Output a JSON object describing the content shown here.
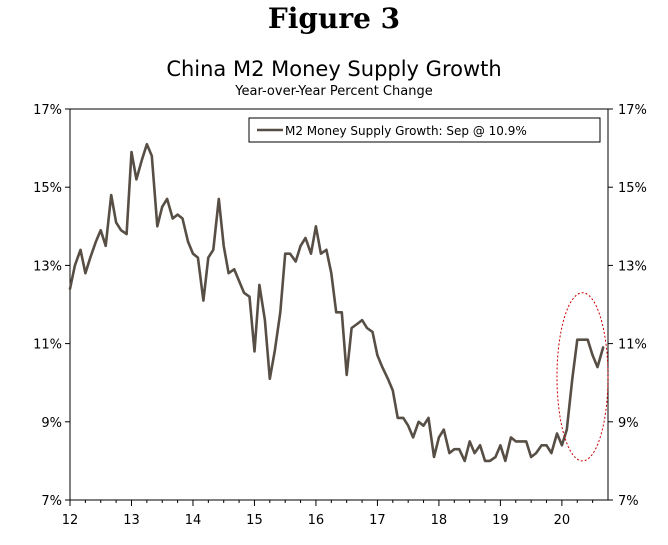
{
  "figure_label": "Figure 3",
  "chart_data": {
    "type": "line",
    "title": "China M2 Money Supply Growth",
    "subtitle": "Year-over-Year Percent Change",
    "xlabel": "",
    "ylabel": "",
    "x_ticks": [
      "12",
      "13",
      "14",
      "15",
      "16",
      "17",
      "18",
      "19",
      "20"
    ],
    "xlim": [
      2012,
      2020.75
    ],
    "ylim": [
      7,
      17
    ],
    "y_ticks": [
      7,
      9,
      11,
      13,
      15,
      17
    ],
    "y_tick_labels": [
      "7%",
      "9%",
      "11%",
      "13%",
      "15%",
      "17%"
    ],
    "legend": {
      "placement": "top-right",
      "entries": [
        "M2 Money Supply Growth: Sep @ 10.9%"
      ]
    },
    "line_color": "#574e45",
    "annotation_color": "#cc0000",
    "annotation": {
      "shape": "dashed ellipse",
      "x_range": [
        2019.92,
        2020.75
      ],
      "y_range": [
        8.0,
        12.3
      ]
    },
    "series": [
      {
        "name": "M2 Money Supply Growth",
        "x": [
          2012.0,
          2012.08,
          2012.17,
          2012.25,
          2012.33,
          2012.42,
          2012.5,
          2012.58,
          2012.67,
          2012.75,
          2012.83,
          2012.92,
          2013.0,
          2013.08,
          2013.17,
          2013.25,
          2013.33,
          2013.42,
          2013.5,
          2013.58,
          2013.67,
          2013.75,
          2013.83,
          2013.92,
          2014.0,
          2014.08,
          2014.17,
          2014.25,
          2014.33,
          2014.42,
          2014.5,
          2014.58,
          2014.67,
          2014.75,
          2014.83,
          2014.92,
          2015.0,
          2015.08,
          2015.17,
          2015.25,
          2015.33,
          2015.42,
          2015.5,
          2015.58,
          2015.67,
          2015.75,
          2015.83,
          2015.92,
          2016.0,
          2016.08,
          2016.17,
          2016.25,
          2016.33,
          2016.42,
          2016.5,
          2016.58,
          2016.67,
          2016.75,
          2016.83,
          2016.92,
          2017.0,
          2017.08,
          2017.17,
          2017.25,
          2017.33,
          2017.42,
          2017.5,
          2017.58,
          2017.67,
          2017.75,
          2017.83,
          2017.92,
          2018.0,
          2018.08,
          2018.17,
          2018.25,
          2018.33,
          2018.42,
          2018.5,
          2018.58,
          2018.67,
          2018.75,
          2018.83,
          2018.92,
          2019.0,
          2019.08,
          2019.17,
          2019.25,
          2019.33,
          2019.42,
          2019.5,
          2019.58,
          2019.67,
          2019.75,
          2019.83,
          2019.92,
          2020.0,
          2020.08,
          2020.17,
          2020.25,
          2020.33,
          2020.42,
          2020.5,
          2020.58,
          2020.67
        ],
        "values": [
          12.4,
          13.0,
          13.4,
          12.8,
          13.2,
          13.6,
          13.9,
          13.5,
          14.8,
          14.1,
          13.9,
          13.8,
          15.9,
          15.2,
          15.7,
          16.1,
          15.8,
          14.0,
          14.5,
          14.7,
          14.2,
          14.3,
          14.2,
          13.6,
          13.3,
          13.2,
          12.1,
          13.2,
          13.4,
          14.7,
          13.5,
          12.8,
          12.9,
          12.6,
          12.3,
          12.2,
          10.8,
          12.5,
          11.6,
          10.1,
          10.8,
          11.8,
          13.3,
          13.3,
          13.1,
          13.5,
          13.7,
          13.3,
          14.0,
          13.3,
          13.4,
          12.8,
          11.8,
          11.8,
          10.2,
          11.4,
          11.5,
          11.6,
          11.4,
          11.3,
          10.7,
          10.4,
          10.1,
          9.8,
          9.1,
          9.1,
          8.9,
          8.6,
          9.0,
          8.9,
          9.1,
          8.1,
          8.6,
          8.8,
          8.2,
          8.3,
          8.3,
          8.0,
          8.5,
          8.2,
          8.4,
          8.0,
          8.0,
          8.1,
          8.4,
          8.0,
          8.6,
          8.5,
          8.5,
          8.5,
          8.1,
          8.2,
          8.4,
          8.4,
          8.2,
          8.7,
          8.4,
          8.8,
          10.1,
          11.1,
          11.1,
          11.1,
          10.7,
          10.4,
          10.9
        ]
      }
    ]
  }
}
